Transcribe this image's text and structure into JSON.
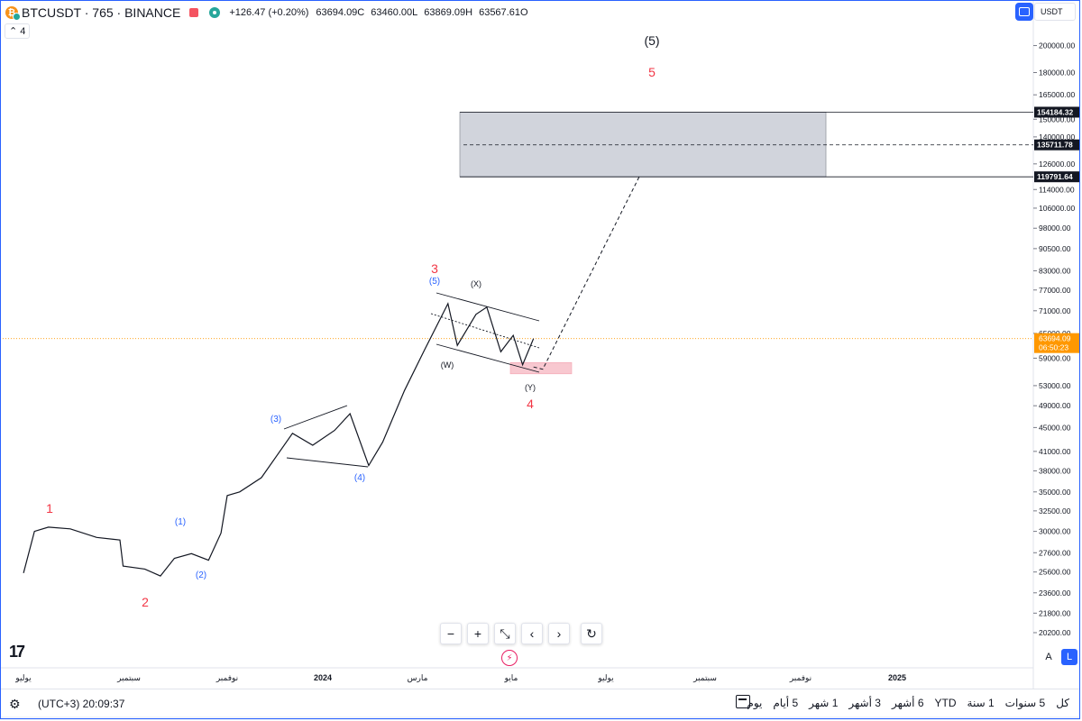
{
  "legend": {
    "logo_glyph": "₿",
    "symbol": "BTCUSDT · 765 · BINANCE",
    "change": "+126.47 (+0.20%)",
    "open": "63694.09C",
    "high": "63460.00L",
    "low": "63869.09H",
    "close": "63567.61O",
    "indicator_count": "4"
  },
  "currency": {
    "label": "USDT"
  },
  "price_scale": {
    "ticks": [
      "200000.00",
      "180000.00",
      "165000.00",
      "150000.00",
      "140000.00",
      "126000.00",
      "114000.00",
      "106000.00",
      "98000.00",
      "90500.00",
      "83000.00",
      "77000.00",
      "71000.00",
      "65000.00",
      "59000.00",
      "53000.00",
      "49000.00",
      "45000.00",
      "41000.00",
      "38000.00",
      "35000.00",
      "32500.00",
      "30000.00",
      "27600.00",
      "25600.00",
      "23600.00",
      "21800.00",
      "20200.00"
    ],
    "marker_top": "154184.32",
    "marker_mid": "135711.78",
    "marker_bottom": "119791.64",
    "last_price": "63694.09",
    "countdown": "06:50:23",
    "auto_label": "A",
    "log_label": "L"
  },
  "time_axis": {
    "labels": [
      "يوليو",
      "سبتمبر",
      "نوفمبر",
      "2024",
      "مارس",
      "مايو",
      "يوليو",
      "سبتمبر",
      "نوفمبر",
      "2025"
    ]
  },
  "waves": {
    "major": [
      "1",
      "2",
      "3",
      "4",
      "5",
      "(5)"
    ],
    "minor": [
      "(1)",
      "(2)",
      "(3)",
      "(4)",
      "(5)"
    ],
    "correction": [
      "(W)",
      "(X)",
      "(Y)"
    ]
  },
  "nav_toolbar": {
    "zoom_out": "−",
    "zoom_in": "+",
    "reset": "⤡",
    "left": "‹",
    "right": "›",
    "refresh": "↻"
  },
  "bottom_bar": {
    "gear_glyph": "⚙",
    "clock": "(UTC+3) 20:09:37",
    "ranges": [
      "يوم",
      "5 أيام",
      "1 شهر",
      "3 أشهر",
      "6 أشهر",
      "YTD",
      "1 سنة",
      "5 سنوات",
      "كل"
    ]
  },
  "chart_data": {
    "type": "line",
    "title": "",
    "series": [
      {
        "values": [
          [
            "2023-06-15",
            25500
          ],
          [
            "2023-06-22",
            30000
          ],
          [
            "2023-07-01",
            30500
          ],
          [
            "2023-07-15",
            30300
          ],
          [
            "2023-08-01",
            29300
          ],
          [
            "2023-08-16",
            29000
          ],
          [
            "2023-08-18",
            26200
          ],
          [
            "2023-09-01",
            25900
          ],
          [
            "2023-09-11",
            25200
          ],
          [
            "2023-09-20",
            27000
          ],
          [
            "2023-10-01",
            27500
          ],
          [
            "2023-10-12",
            26800
          ],
          [
            "2023-10-20",
            29800
          ],
          [
            "2023-10-24",
            34500
          ],
          [
            "2023-11-01",
            35000
          ],
          [
            "2023-11-15",
            37000
          ],
          [
            "2023-12-05",
            44000
          ],
          [
            "2023-12-18",
            42000
          ],
          [
            "2024-01-01",
            44500
          ],
          [
            "2024-01-11",
            47500
          ],
          [
            "2024-01-23",
            38800
          ],
          [
            "2024-02-01",
            42500
          ],
          [
            "2024-02-15",
            52000
          ],
          [
            "2024-02-28",
            61000
          ],
          [
            "2024-03-14",
            73000
          ],
          [
            "2024-03-20",
            62000
          ],
          [
            "2024-04-01",
            70000
          ],
          [
            "2024-04-08",
            72000
          ],
          [
            "2024-04-17",
            60500
          ],
          [
            "2024-04-25",
            64500
          ],
          [
            "2024-05-01",
            57500
          ],
          [
            "2024-05-08",
            63694
          ]
        ]
      }
    ],
    "target_zone": {
      "top": 154184.32,
      "mid": 135711.78,
      "bottom": 119791.64
    },
    "wave4_zone": {
      "top": 58000,
      "bottom": 55500
    },
    "projection": [
      [
        "2024-05-08",
        57000
      ],
      [
        "2024-05-14",
        56500
      ],
      [
        "2024-07-15",
        119791.64
      ]
    ],
    "last_price": 63694.09,
    "ylim": [
      19500,
      215000
    ],
    "log_scale": true,
    "grid": false
  }
}
